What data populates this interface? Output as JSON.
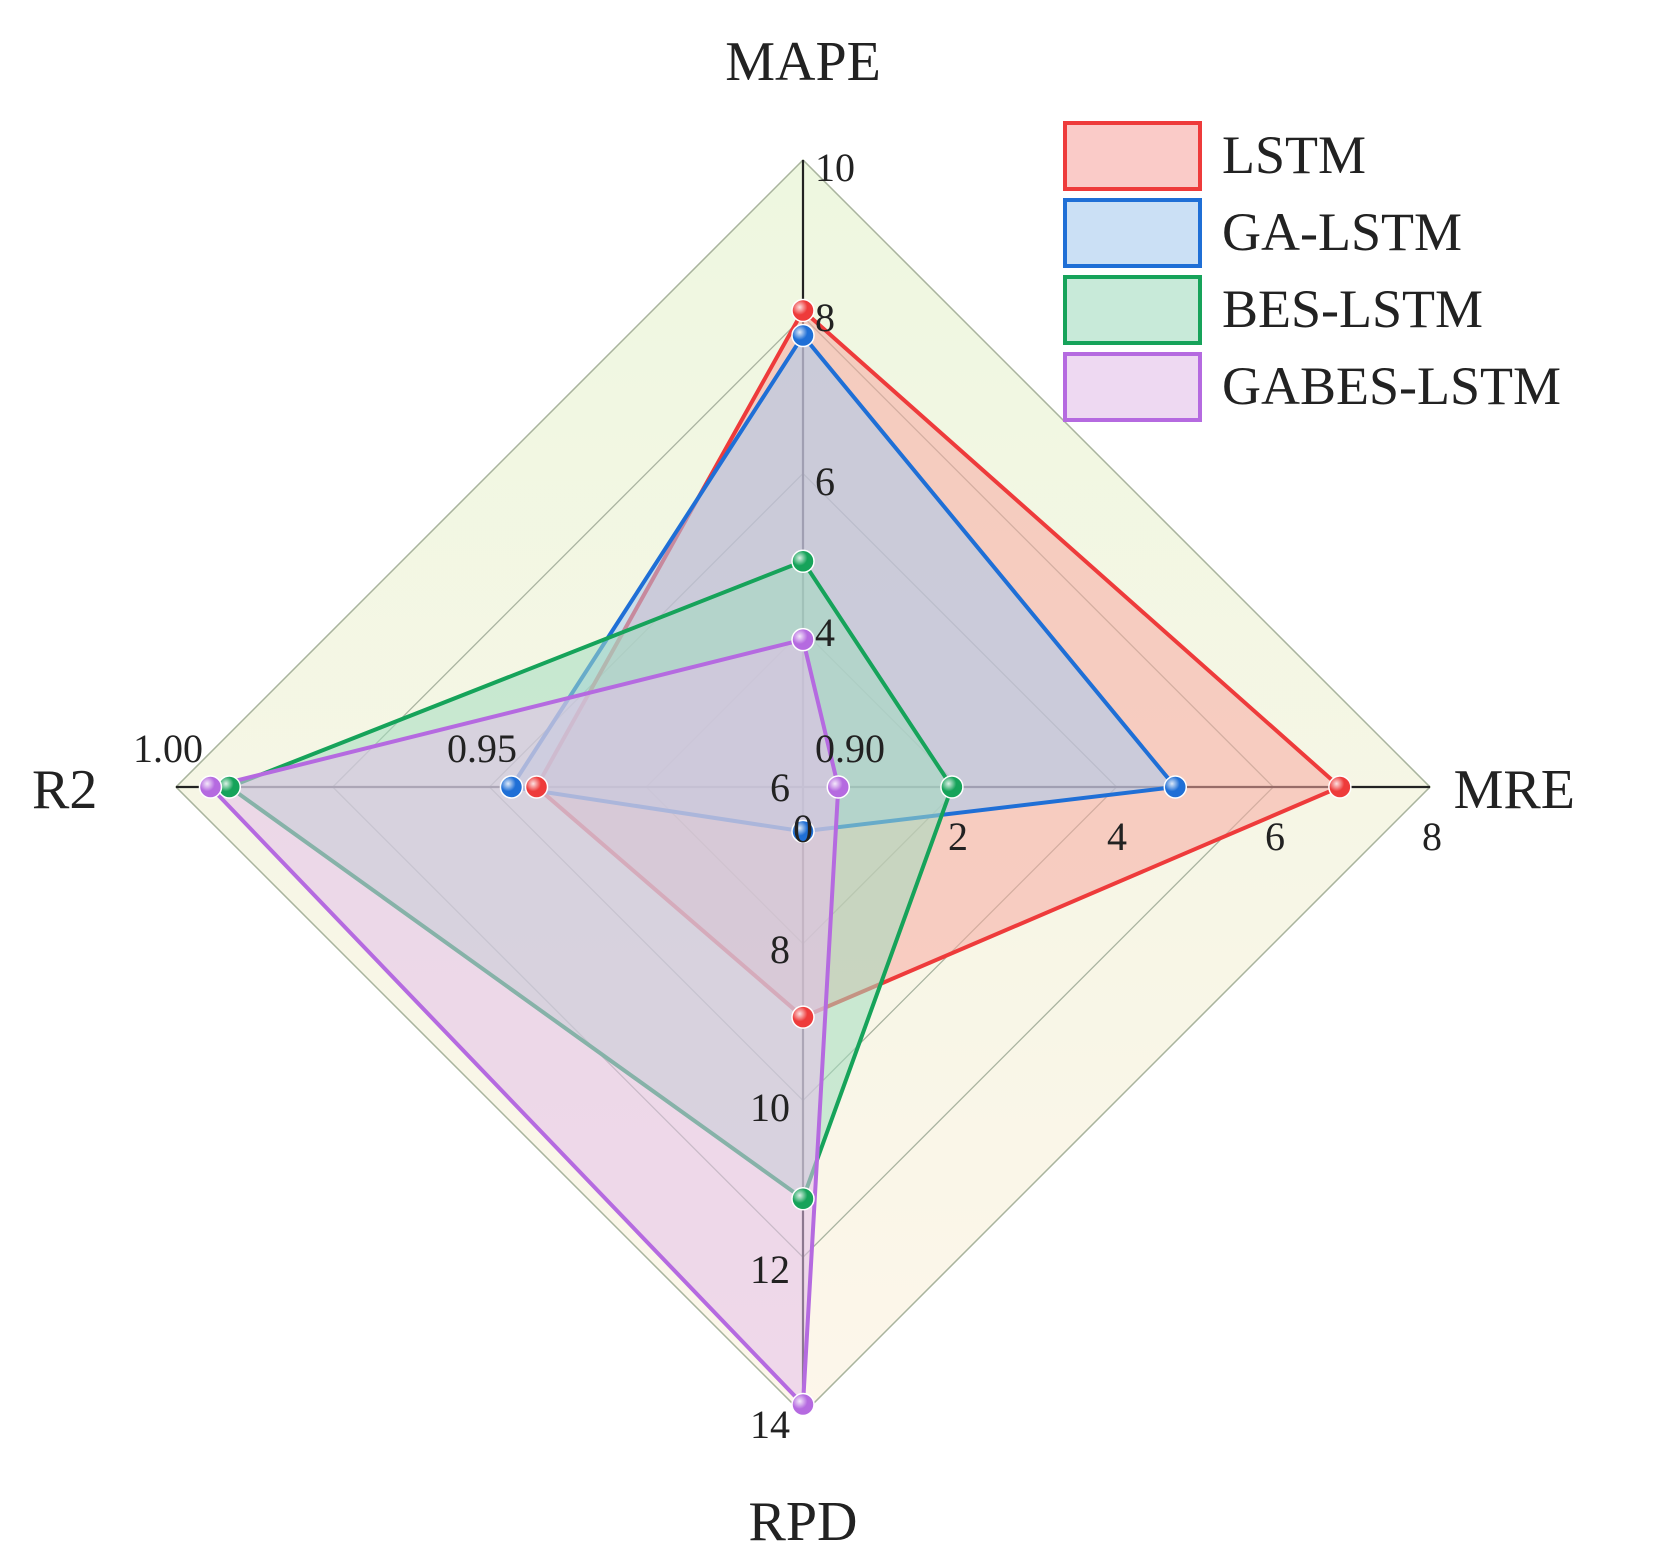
{
  "chart_data": {
    "type": "radar",
    "axes": [
      {
        "name": "MAPE",
        "ticks": [
          "4",
          "6",
          "8",
          "10"
        ]
      },
      {
        "name": "MRE",
        "ticks": [
          "0",
          "2",
          "4",
          "6",
          "8"
        ]
      },
      {
        "name": "RPD",
        "ticks": [
          "6",
          "8",
          "10",
          "12",
          "14"
        ]
      },
      {
        "name": "R2",
        "ticks": [
          "0.90",
          "0.95",
          "1.00"
        ]
      }
    ],
    "series": [
      {
        "name": "LSTM",
        "color": "#ee3b3b",
        "fill": "#f7a9a3",
        "values": {
          "MAPE": 7.6,
          "MRE": 6.85,
          "RPD": 8.85,
          "R2": 0.9425
        }
      },
      {
        "name": "GA-LSTM",
        "color": "#1f6fd6",
        "fill": "#a8cbee",
        "values": {
          "MAPE": 7.2,
          "MRE": 4.75,
          "RPD": 6.55,
          "R2": 0.9465
        }
      },
      {
        "name": "BES-LSTM",
        "color": "#16a35a",
        "fill": "#a3dcc0",
        "values": {
          "MAPE": 3.6,
          "MRE": 1.9,
          "RPD": 11.1,
          "R2": 0.9915
        }
      },
      {
        "name": "GABES-LSTM",
        "color": "#b56ae0",
        "fill": "#e3bfea",
        "values": {
          "MAPE": 2.35,
          "MRE": 0.45,
          "RPD": 13.65,
          "R2": 0.9945
        }
      }
    ],
    "legend_position": "top-right"
  }
}
